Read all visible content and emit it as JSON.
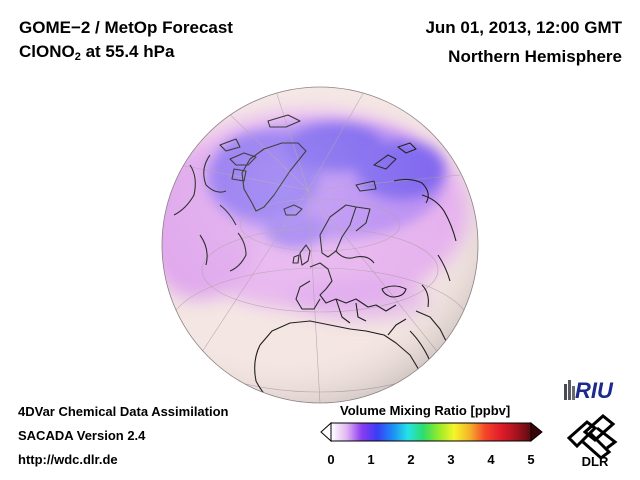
{
  "header": {
    "title": "GOME−2 / MetOp Forecast",
    "species_prefix": "ClONO",
    "species_subscript": "2",
    "species_suffix": " at 55.4 hPa",
    "datetime": "Jun 01, 2013, 12:00 GMT",
    "region": "Northern Hemisphere"
  },
  "footer": {
    "line1": "4DVar Chemical Data Assimilation",
    "line2": "SACADA Version 2.4",
    "url": "http://wdc.dlr.de"
  },
  "colorbar": {
    "title": "Volume Mixing Ratio [ppbv]",
    "ticks": [
      "0",
      "1",
      "2",
      "3",
      "4",
      "5"
    ],
    "range": [
      0,
      5
    ],
    "colors": [
      "#ffffff",
      "#e2b8f2",
      "#8a3cf0",
      "#3b3cf5",
      "#1d8cf6",
      "#25e3e6",
      "#2edc6b",
      "#96eb2a",
      "#f5f52a",
      "#f5b42a",
      "#f5462a",
      "#e31e2a",
      "#a8141e",
      "#5c0a10"
    ]
  },
  "logos": {
    "riu": "RIU",
    "dlr": "DLR"
  },
  "map": {
    "projection": "orthographic",
    "ocean_color": "#f4e6e2",
    "low_color": "#e9b6ea",
    "mid_color": "#c78df0",
    "high_color": "#6a58ee"
  }
}
